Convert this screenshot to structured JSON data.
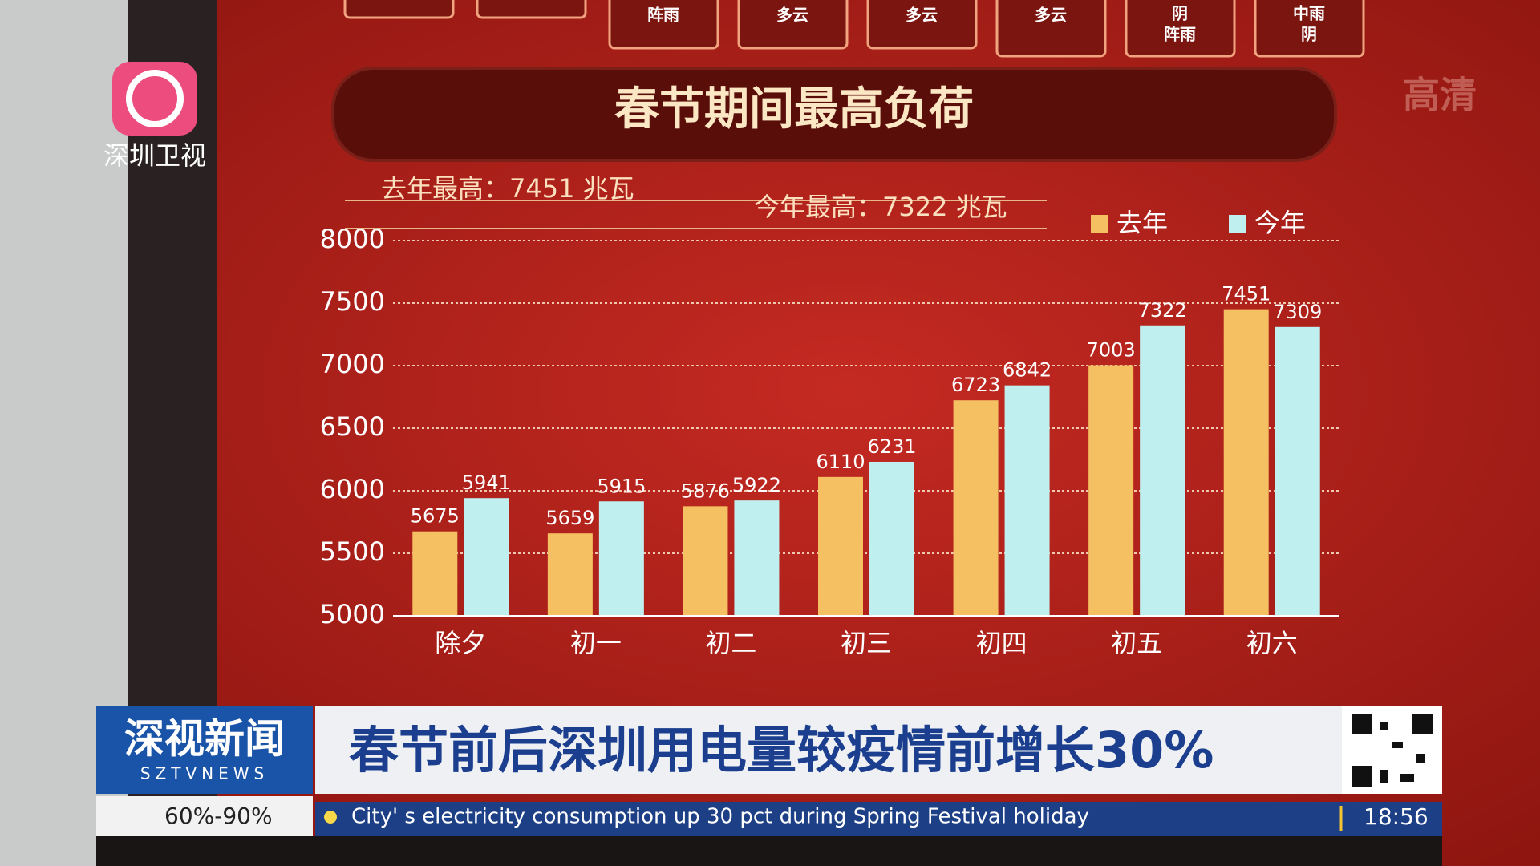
{
  "chart_data": {
    "type": "bar",
    "title": "春节期间最高负荷",
    "annotations": [
      "去年最高：7451 兆瓦",
      "今年最高：7322 兆瓦"
    ],
    "categories": [
      "除夕",
      "初一",
      "初二",
      "初三",
      "初四",
      "初五",
      "初六"
    ],
    "series": [
      {
        "name": "去年",
        "color": "#f5c062",
        "values": [
          5675,
          5659,
          5876,
          6110,
          6723,
          7003,
          7451
        ]
      },
      {
        "name": "今年",
        "color": "#bff0ef",
        "values": [
          5941,
          5915,
          5922,
          6231,
          6842,
          7322,
          7309
        ]
      }
    ],
    "ylim": [
      5000,
      8000
    ],
    "yticks": [
      5000,
      5500,
      6000,
      6500,
      7000,
      7500,
      8000
    ],
    "grid": true,
    "legend": "top-right"
  },
  "weather": [
    [
      "阵雨"
    ],
    [
      "多云"
    ],
    [
      "多云"
    ],
    [
      "多云"
    ],
    [
      "阴",
      "阵雨"
    ],
    [
      "中雨",
      "阴"
    ]
  ],
  "channel": "深圳卫视",
  "quality": "高清",
  "program": {
    "name": "深视新闻",
    "latin": "SZTVNEWS",
    "humidity": "60%-90%"
  },
  "headline": "春节前后深圳用电量较疫情前增长30%",
  "ticker": "City'  s electricity consumption up 30 pct during Spring Festival holiday",
  "time": "18:56"
}
